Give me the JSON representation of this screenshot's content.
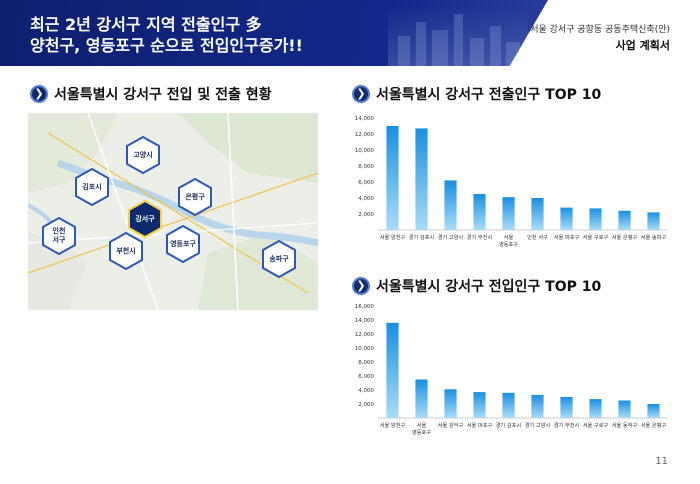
{
  "header": {
    "title_line1": "최근 2년 강서구 지역 전출인구 多",
    "title_line2": "양천구, 영등포구 순으로 전입인구증가!!",
    "subtitle": "서울 강서구 공항동 공동주택신축(안)",
    "doc_title": "사업 계획서"
  },
  "sections": {
    "map_title": "서울특별시 강서구 전입 및 전출 현황",
    "out_title": "서울특별시 강서구 전출인구 TOP 10",
    "in_title": "서울특별시 강서구 전입인구 TOP 10",
    "arrow_glyph": "❯"
  },
  "map_regions": [
    {
      "label": "고양시",
      "highlight": false
    },
    {
      "label": "김포시",
      "highlight": false
    },
    {
      "label": "은평구",
      "highlight": false
    },
    {
      "label": "강서구",
      "highlight": true
    },
    {
      "label": "인천\n서구",
      "highlight": false
    },
    {
      "label": "부천시",
      "highlight": false
    },
    {
      "label": "영등포구",
      "highlight": false
    },
    {
      "label": "송파구",
      "highlight": false
    }
  ],
  "colors": {
    "accent": "#0e2a6e",
    "bar_top": "#1a8fe0",
    "bar_bottom": "#a9dcf8",
    "hex_border": "#2f57b5"
  },
  "page_number": "11",
  "chart_data": [
    {
      "type": "bar",
      "categories": [
        "서울 양천구",
        "경기 김포시",
        "경기 고양시",
        "경기 부천시",
        "서울\n영등포구",
        "인천 서구",
        "서울 마포구",
        "서울 구로구",
        "서울 은평구",
        "서울 송파구"
      ],
      "values": [
        13000,
        12700,
        6200,
        4500,
        4100,
        4000,
        2800,
        2700,
        2400,
        2200
      ],
      "ylim": [
        0,
        14000
      ],
      "yticks": [
        "14,000",
        "12,000",
        "10,000",
        "8,000",
        "6,000",
        "4,000",
        "2,000"
      ],
      "ytick_values": [
        14000,
        12000,
        10000,
        8000,
        6000,
        4000,
        2000
      ],
      "grid": false
    },
    {
      "type": "bar",
      "categories": [
        "서울 양천구",
        "서울\n영등포구",
        "서울 관악구",
        "서울 마포구",
        "경기 김포시",
        "경기 고양시",
        "경기 부천시",
        "서울 구로구",
        "서울 동작구",
        "서울 은평구"
      ],
      "values": [
        13600,
        5500,
        4100,
        3700,
        3600,
        3300,
        3000,
        2700,
        2500,
        2000
      ],
      "ylim": [
        0,
        16000
      ],
      "yticks": [
        "16,000",
        "14,000",
        "12,000",
        "10,000",
        "8,000",
        "6,000",
        "4,000",
        "2,000"
      ],
      "ytick_values": [
        16000,
        14000,
        12000,
        10000,
        8000,
        6000,
        4000,
        2000
      ],
      "grid": false
    }
  ]
}
